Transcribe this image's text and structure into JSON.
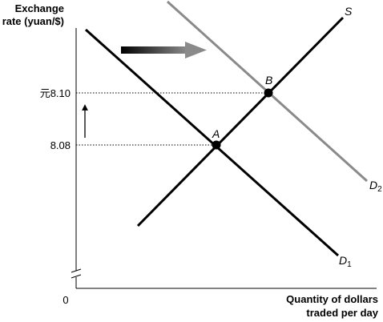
{
  "axes": {
    "y_label_line1": "Exchange",
    "y_label_line2": "rate (yuan/$)",
    "x_label_line1": "Quantity of dollars",
    "x_label_line2": "traded per day",
    "origin_label": "0",
    "y_ticks": [
      "元8.10",
      "8.08"
    ]
  },
  "curves": {
    "supply": "S",
    "demand1": "D",
    "demand1_sub": "1",
    "demand2": "D",
    "demand2_sub": "2"
  },
  "points": {
    "a": "A",
    "b": "B"
  },
  "colors": {
    "axis": "#000000",
    "supply": "#000000",
    "demand1": "#000000",
    "demand2": "#8a8a8a",
    "guide": "#000000",
    "arrow_start": "#000000",
    "arrow_end": "#8a8a8a"
  },
  "icons": {
    "shift_arrow": "right-arrow-gradient",
    "rise_arrow": "up-arrow"
  }
}
